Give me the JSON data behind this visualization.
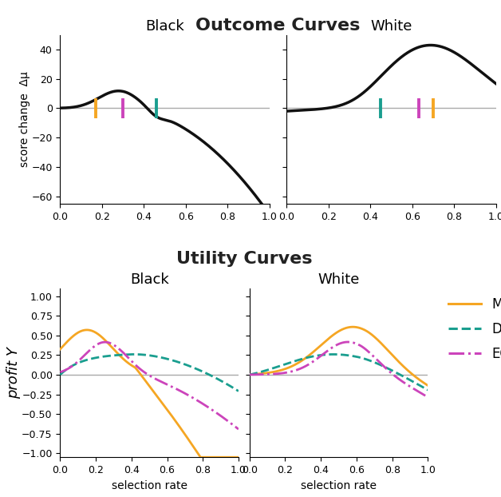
{
  "title_outcome": "Outcome Curves",
  "title_utility": "Utility Curves",
  "black_label": "Black",
  "white_label": "White",
  "outcome_ylim": [
    -65,
    50
  ],
  "outcome_yticks": [
    -60,
    -40,
    -20,
    0,
    20,
    40
  ],
  "utility_ylim": [
    -1.05,
    1.1
  ],
  "utility_yticks": [
    -1.0,
    -0.75,
    -0.5,
    -0.25,
    0.0,
    0.25,
    0.5,
    0.75,
    1.0
  ],
  "xlim": [
    0.0,
    1.0
  ],
  "xticks": [
    0.0,
    0.2,
    0.4,
    0.6,
    0.8,
    1.0
  ],
  "xlabel": "selection rate",
  "ylabel_outcome": "score change  Δμ",
  "ylabel_utility": "profit Υ",
  "mu_color": "#F5A623",
  "dp_color": "#1A9E8F",
  "eo_color": "#CC44BB",
  "curve_color": "#111111",
  "hline_color": "#AAAAAA",
  "marker_orange_black": 0.17,
  "marker_magenta_black": 0.3,
  "marker_teal_black": 0.46,
  "marker_teal_white": 0.45,
  "marker_magenta_white": 0.63,
  "marker_orange_white": 0.7,
  "legend_labels": [
    "MU",
    "DP",
    "EO"
  ]
}
